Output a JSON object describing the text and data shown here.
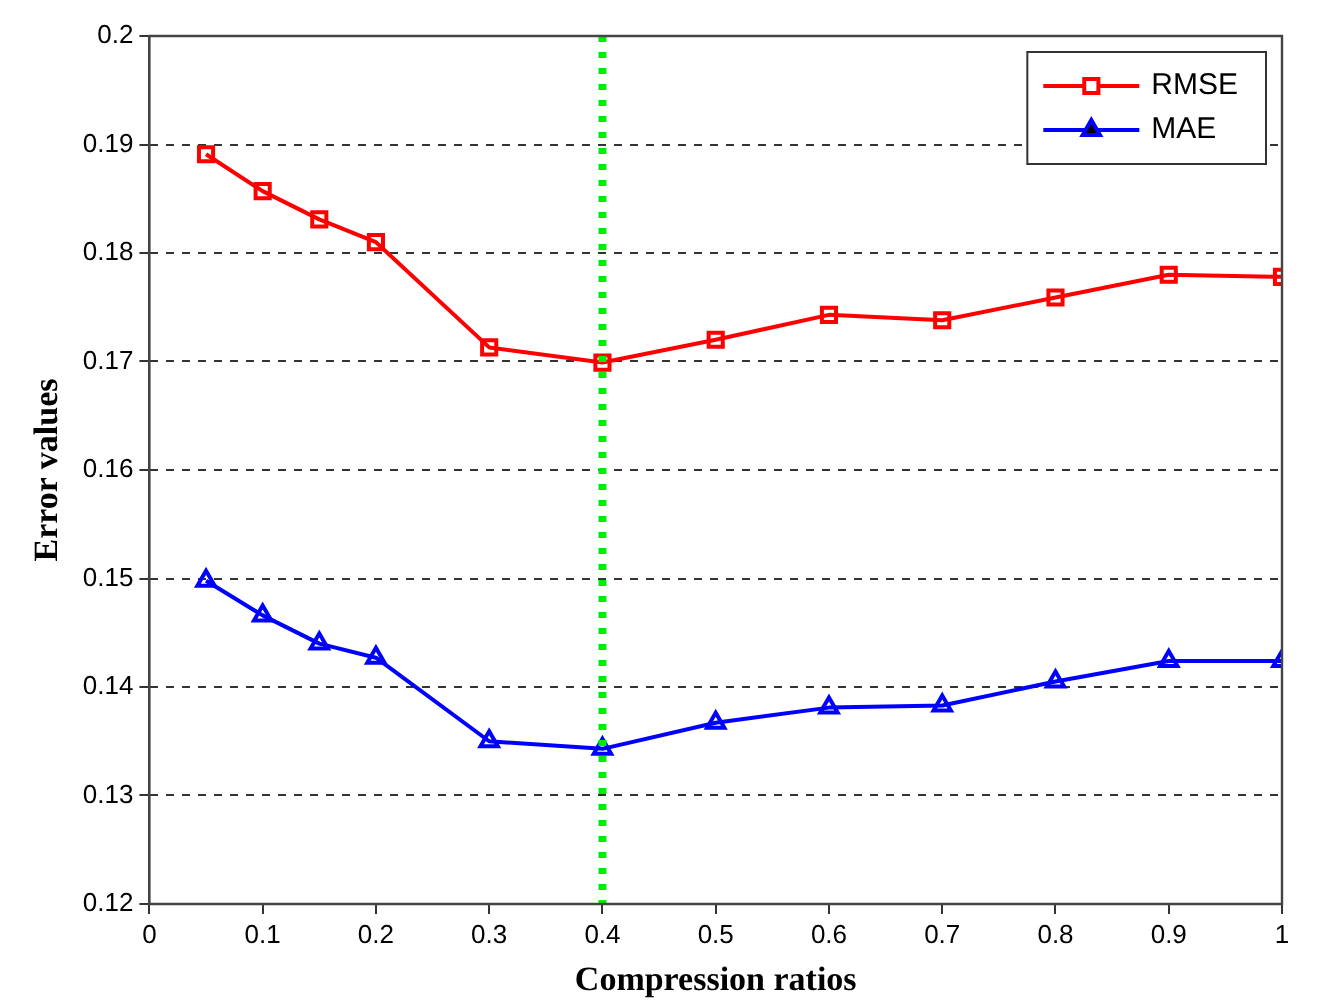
{
  "chart_data": {
    "type": "line",
    "xlabel": "Compression ratios",
    "ylabel": "Error values",
    "x": [
      0.05,
      0.1,
      0.15,
      0.2,
      0.3,
      0.4,
      0.5,
      0.6,
      0.7,
      0.8,
      0.9,
      1
    ],
    "series": [
      {
        "name": "RMSE",
        "color": "#ff0000",
        "marker": "square",
        "values": [
          0.1891,
          0.1857,
          0.1831,
          0.181,
          0.1713,
          0.1699,
          0.172,
          0.1743,
          0.1738,
          0.1759,
          0.178,
          0.1778
        ]
      },
      {
        "name": "MAE",
        "color": "#0000ff",
        "marker": "triangle",
        "values": [
          0.1498,
          0.1466,
          0.144,
          0.1427,
          0.135,
          0.1343,
          0.1367,
          0.1381,
          0.1383,
          0.1405,
          0.1424,
          0.1424
        ]
      }
    ],
    "xlim": [
      0,
      1
    ],
    "xticks": [
      0,
      0.1,
      0.2,
      0.3,
      0.4,
      0.5,
      0.6,
      0.7,
      0.8,
      0.9,
      1
    ],
    "ylim": [
      0.12,
      0.2
    ],
    "yticks": [
      0.12,
      0.13,
      0.14,
      0.15,
      0.16,
      0.17,
      0.18,
      0.19,
      0.2
    ],
    "ref_lines": [
      {
        "axis": "x",
        "value": 0.4,
        "color": "#00ee00",
        "line_style": "dotted"
      }
    ],
    "grid": "y",
    "legend": "top right",
    "line_style": "solid"
  }
}
